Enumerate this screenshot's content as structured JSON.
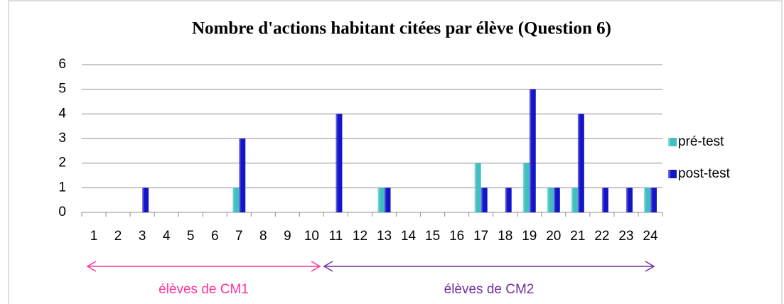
{
  "chart_data": {
    "type": "bar",
    "title": "Nombre d'actions habitant citées par élève (Question 6)",
    "categories": [
      "1",
      "2",
      "3",
      "4",
      "5",
      "6",
      "7",
      "8",
      "9",
      "10",
      "11",
      "12",
      "13",
      "14",
      "15",
      "16",
      "17",
      "18",
      "19",
      "20",
      "21",
      "22",
      "23",
      "24"
    ],
    "series": [
      {
        "name": "pré-test",
        "color": "#3fbfbf",
        "values": [
          0,
          0,
          0,
          0,
          0,
          0,
          1,
          0,
          0,
          0,
          0,
          0,
          1,
          0,
          0,
          0,
          2,
          0,
          2,
          1,
          1,
          0,
          0,
          1
        ]
      },
      {
        "name": "post-test",
        "color": "#1414c8",
        "values": [
          0,
          0,
          1,
          0,
          0,
          0,
          3,
          0,
          0,
          0,
          4,
          0,
          1,
          0,
          0,
          0,
          1,
          1,
          5,
          1,
          4,
          1,
          1,
          1
        ]
      }
    ],
    "ylim": [
      0,
      6
    ],
    "yticks": [
      0,
      1,
      2,
      3,
      4,
      5,
      6
    ],
    "grid": true,
    "legend": "right",
    "annotations": [
      {
        "text": "élèves de CM1",
        "color": "#ff3399"
      },
      {
        "text": "élèves de CM2",
        "color": "#7030a0"
      }
    ]
  }
}
